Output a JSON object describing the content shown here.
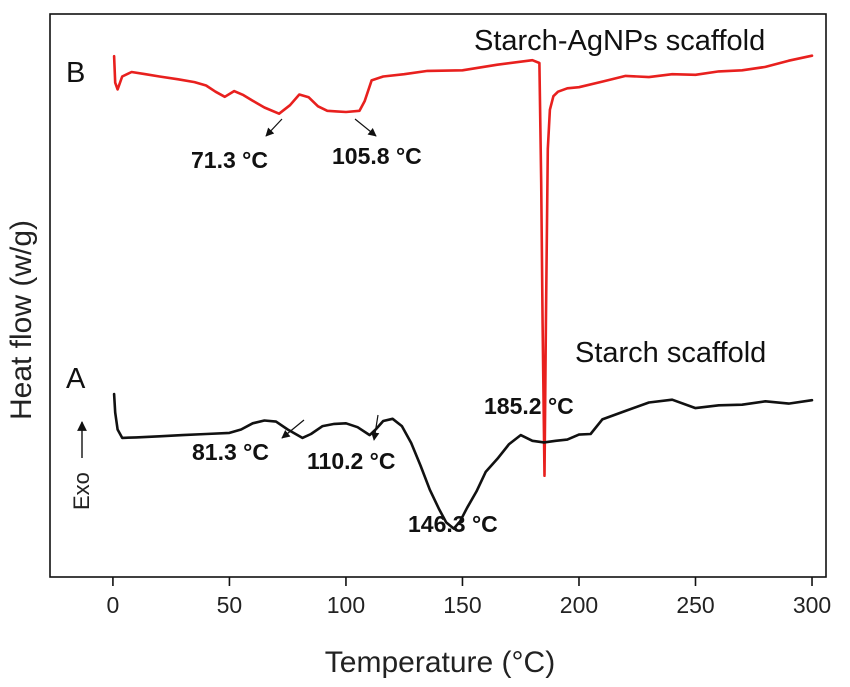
{
  "chart_data": {
    "type": "line",
    "title": "",
    "xlabel": "Temperature (°C)",
    "ylabel": "Heat flow (w/g)",
    "exo_label": "Exo",
    "xlim": [
      -27,
      306
    ],
    "ylim": [
      0,
      1
    ],
    "y_ticks_shown": false,
    "grid": false,
    "x_ticks": [
      0,
      50,
      100,
      150,
      200,
      250,
      300
    ],
    "x_tick_labels": [
      "0",
      "50",
      "100",
      "150",
      "200",
      "250",
      "300"
    ],
    "series": [
      {
        "name": "Starch-AgNPs scaffold",
        "panel": "B",
        "color": "#e8201e",
        "x": [
          0.5,
          1,
          2,
          4,
          8,
          14,
          20,
          28,
          35,
          40,
          44,
          48,
          52,
          56,
          60,
          65,
          71.3,
          76,
          80,
          84,
          88,
          92,
          96,
          100,
          105.8,
          108,
          111,
          116,
          125,
          135,
          150,
          165,
          180,
          183,
          183.8,
          184.4,
          185.2,
          185.8,
          186.6,
          187.5,
          189,
          191,
          195,
          200,
          210,
          220,
          230,
          240,
          250,
          260,
          270,
          280,
          290,
          300
        ],
        "y": [
          0.925,
          0.878,
          0.866,
          0.889,
          0.897,
          0.893,
          0.889,
          0.884,
          0.879,
          0.873,
          0.862,
          0.853,
          0.863,
          0.856,
          0.846,
          0.834,
          0.823,
          0.838,
          0.857,
          0.852,
          0.836,
          0.828,
          0.827,
          0.826,
          0.828,
          0.845,
          0.882,
          0.889,
          0.893,
          0.899,
          0.9,
          0.91,
          0.918,
          0.913,
          0.7,
          0.45,
          0.18,
          0.45,
          0.76,
          0.83,
          0.854,
          0.862,
          0.868,
          0.87,
          0.88,
          0.89,
          0.888,
          0.893,
          0.892,
          0.898,
          0.9,
          0.906,
          0.917,
          0.926
        ]
      },
      {
        "name": "Starch scaffold",
        "panel": "A",
        "color": "#111111",
        "x": [
          0.5,
          1,
          2,
          4,
          10,
          20,
          30,
          40,
          50,
          55,
          60,
          65,
          70,
          75,
          81.3,
          85,
          90,
          95,
          100,
          105,
          110.2,
          113,
          116,
          120,
          124,
          128,
          132,
          136,
          140,
          143,
          146.3,
          149,
          152,
          156,
          160,
          165,
          170,
          175,
          180,
          185,
          190,
          195,
          200,
          205,
          210,
          220,
          230,
          240,
          250,
          260,
          270,
          280,
          290,
          300
        ],
        "y": [
          0.325,
          0.292,
          0.262,
          0.247,
          0.248,
          0.25,
          0.252,
          0.254,
          0.256,
          0.262,
          0.273,
          0.278,
          0.276,
          0.262,
          0.247,
          0.254,
          0.268,
          0.272,
          0.273,
          0.266,
          0.252,
          0.263,
          0.277,
          0.281,
          0.268,
          0.238,
          0.198,
          0.155,
          0.12,
          0.097,
          0.086,
          0.099,
          0.123,
          0.152,
          0.187,
          0.21,
          0.236,
          0.252,
          0.242,
          0.239,
          0.242,
          0.244,
          0.253,
          0.254,
          0.28,
          0.295,
          0.31,
          0.315,
          0.3,
          0.305,
          0.306,
          0.312,
          0.308,
          0.314
        ]
      }
    ],
    "annotations": [
      {
        "text": "71.3 °C",
        "series": 0,
        "x": 71.3,
        "y": 0.823
      },
      {
        "text": "105.8 °C",
        "series": 0,
        "x": 105.8,
        "y": 0.828
      },
      {
        "text": "185.2 °C",
        "series": 0,
        "x": 185.2,
        "y": 0.18
      },
      {
        "text": "81.3 °C",
        "series": 1,
        "x": 81.3,
        "y": 0.247
      },
      {
        "text": "110.2 °C",
        "series": 1,
        "x": 110.2,
        "y": 0.252
      },
      {
        "text": "146.3 °C",
        "series": 1,
        "x": 146.3,
        "y": 0.086
      }
    ],
    "panel_labels": [
      "A",
      "B"
    ]
  }
}
